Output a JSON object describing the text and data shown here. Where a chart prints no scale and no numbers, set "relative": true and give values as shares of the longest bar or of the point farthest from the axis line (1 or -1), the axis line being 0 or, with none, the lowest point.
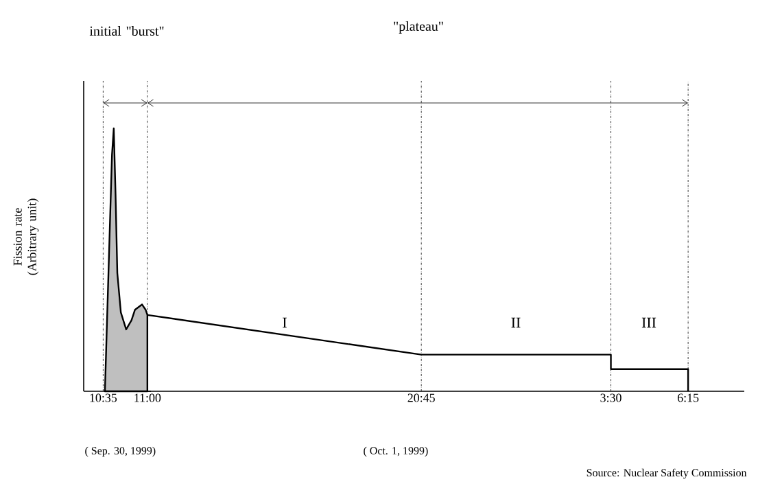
{
  "chart_data": [
    {
      "type": "area",
      "relative": true,
      "ylabel": "Fission rate (Arbitrary unit)",
      "xlim": [
        "1999-09-30T10:24",
        "1999-09-30T11:02"
      ],
      "xticks": [
        {
          "value": "1999-09-30T10:35",
          "label": "10:35"
        },
        {
          "value": "1999-09-30T11:00",
          "label": "11:00"
        }
      ],
      "series": [
        {
          "color": "#000000",
          "x": [
            "1999-09-30T10:36",
            "1999-09-30T10:38",
            "1999-09-30T10:40",
            "1999-09-30T10:41",
            "1999-09-30T10:42",
            "1999-09-30T10:43",
            "1999-09-30T10:45",
            "1999-09-30T10:48",
            "1999-09-30T10:51",
            "1999-09-30T10:53",
            "1999-09-30T10:57",
            "1999-09-30T10:59",
            "1999-09-30T11:00"
          ],
          "values": [
            0,
            0.45,
            0.9,
            1.0,
            0.75,
            0.45,
            0.3,
            0.235,
            0.27,
            0.31,
            0.33,
            0.31,
            0.29
          ]
        }
      ],
      "ref_lines": [
        {
          "axis": "x",
          "value": "1999-09-30T10:35"
        },
        {
          "axis": "x",
          "value": "1999-09-30T11:00"
        }
      ],
      "annotations": [
        "initial \"burst\"",
        "( Sep. 30, 1999)"
      ]
    },
    {
      "type": "line",
      "relative": true,
      "tick_labels": "x",
      "xlim": [
        "1999-09-30T11:00",
        "1999-10-01T08:15"
      ],
      "xticks": [
        {
          "value": "1999-09-30T20:45",
          "label": "20:45"
        },
        {
          "value": "1999-10-01T03:30",
          "label": "3:30"
        },
        {
          "value": "1999-10-01T06:15",
          "label": "6:15"
        }
      ],
      "series": [
        {
          "color": "#000000",
          "x": [
            "1999-09-30T11:00",
            "1999-09-30T20:45",
            "1999-10-01T03:30",
            "1999-10-01T03:30",
            "1999-10-01T06:15",
            "1999-10-01T06:15"
          ],
          "values": [
            1,
            0.48,
            0.48,
            0.29,
            0.29,
            0
          ]
        }
      ],
      "ref_lines": [
        {
          "axis": "x",
          "value": "1999-09-30T20:45"
        },
        {
          "axis": "x",
          "value": "1999-10-01T03:30"
        },
        {
          "axis": "x",
          "value": "1999-10-01T06:15"
        }
      ],
      "annotations": [
        "\"plateau\"",
        "I",
        "II",
        "III",
        "( Oct. 1, 1999)",
        "Source: Nuclear Safety Commission"
      ]
    }
  ]
}
